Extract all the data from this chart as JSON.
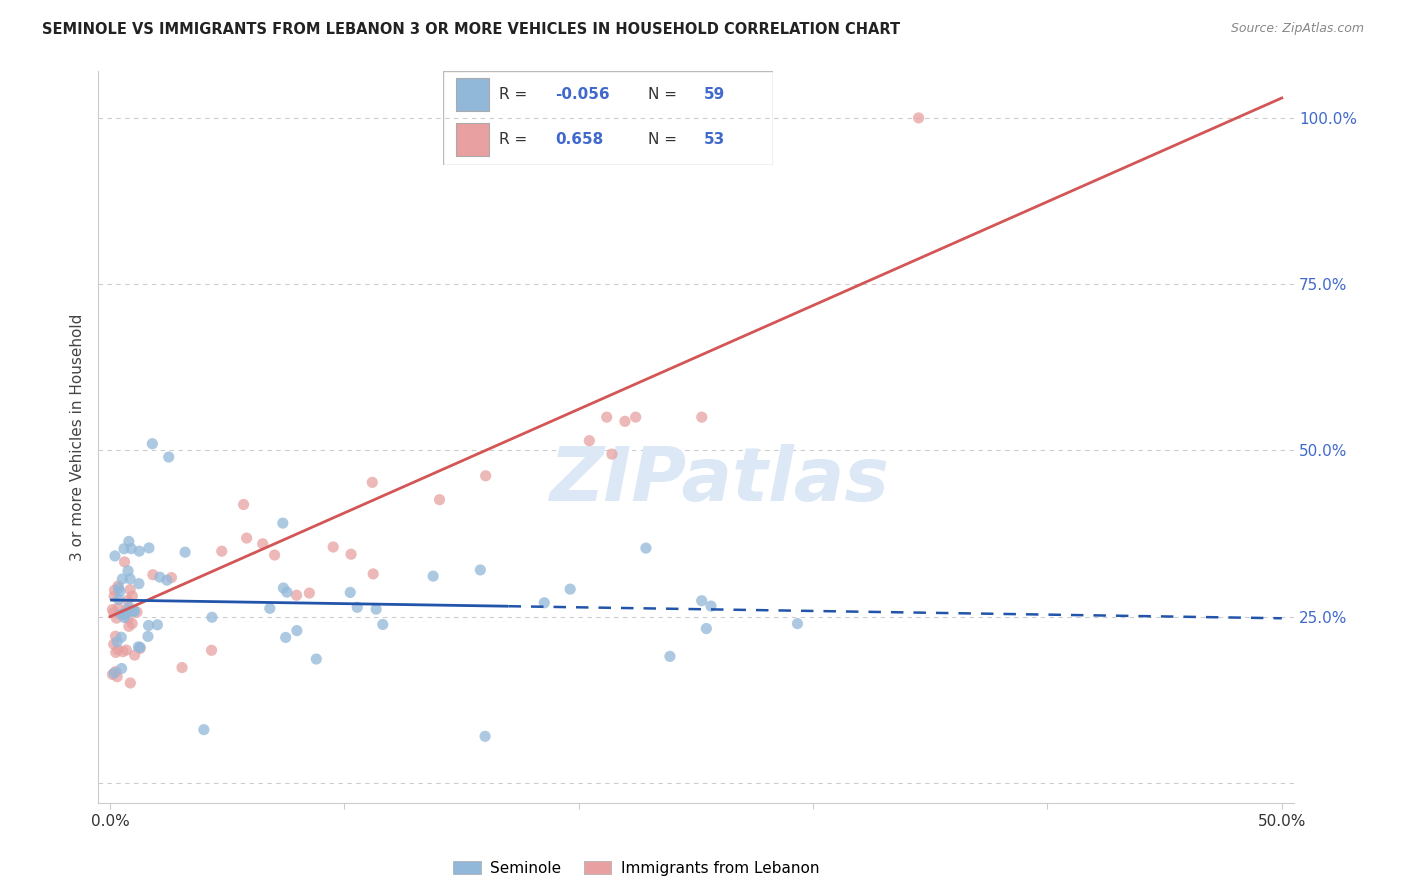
{
  "title": "SEMINOLE VS IMMIGRANTS FROM LEBANON 3 OR MORE VEHICLES IN HOUSEHOLD CORRELATION CHART",
  "source": "Source: ZipAtlas.com",
  "ylabel": "3 or more Vehicles in Household",
  "xlim": [
    0.0,
    50.0
  ],
  "ylim": [
    0.0,
    105.0
  ],
  "yticks": [
    0.0,
    25.0,
    50.0,
    75.0,
    100.0
  ],
  "xticks": [
    0.0,
    10.0,
    20.0,
    30.0,
    40.0,
    50.0
  ],
  "xtick_labels": [
    "0.0%",
    "",
    "",
    "",
    "",
    "50.0%"
  ],
  "ytick_labels_right": [
    "",
    "25.0%",
    "50.0%",
    "75.0%",
    "100.0%"
  ],
  "seminole_color": "#92b8d9",
  "lebanon_color": "#e8a0a0",
  "seminole_line_color": "#2255aa",
  "lebanon_line_color": "#d45555",
  "legend_R_seminole": "-0.056",
  "legend_N_seminole": "59",
  "legend_R_lebanon": "0.658",
  "legend_N_lebanon": "53",
  "watermark": "ZIPatlas",
  "watermark_color": "#dce8f5",
  "background_color": "#ffffff",
  "grid_color": "#cccccc",
  "right_tick_color": "#4169cc",
  "sem_line_y0": 27.5,
  "sem_line_slope": -0.055,
  "sem_line_solid_end": 17.0,
  "leb_line_y0": 25.0,
  "leb_line_slope": 1.56,
  "leb_outlier_x": 34.5,
  "leb_outlier_y": 100.0
}
